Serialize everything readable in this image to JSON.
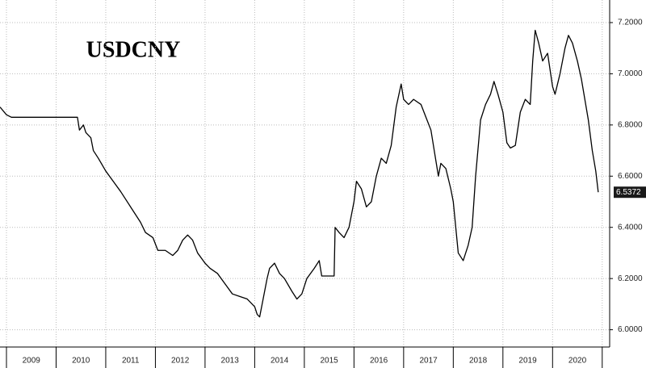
{
  "chart_data": {
    "type": "line",
    "title": "USDCNY",
    "x": [
      2008.87,
      2009.0,
      2009.1,
      2009.5,
      2010.0,
      2010.43,
      2010.47,
      2010.55,
      2010.6,
      2010.7,
      2010.75,
      2010.85,
      2011.0,
      2011.15,
      2011.3,
      2011.5,
      2011.7,
      2011.8,
      2011.95,
      2012.05,
      2012.2,
      2012.35,
      2012.45,
      2012.55,
      2012.65,
      2012.75,
      2012.85,
      2013.0,
      2013.1,
      2013.25,
      2013.4,
      2013.55,
      2013.7,
      2013.85,
      2014.0,
      2014.05,
      2014.1,
      2014.15,
      2014.25,
      2014.3,
      2014.4,
      2014.5,
      2014.6,
      2014.75,
      2014.85,
      2014.95,
      2015.05,
      2015.2,
      2015.3,
      2015.35,
      2015.5,
      2015.6,
      2015.62,
      2015.7,
      2015.8,
      2015.9,
      2016.0,
      2016.05,
      2016.15,
      2016.25,
      2016.35,
      2016.45,
      2016.55,
      2016.65,
      2016.75,
      2016.85,
      2016.95,
      2017.0,
      2017.1,
      2017.2,
      2017.35,
      2017.45,
      2017.55,
      2017.65,
      2017.7,
      2017.75,
      2017.85,
      2017.95,
      2018.0,
      2018.1,
      2018.2,
      2018.3,
      2018.38,
      2018.45,
      2018.55,
      2018.65,
      2018.75,
      2018.82,
      2018.9,
      2019.0,
      2019.08,
      2019.15,
      2019.25,
      2019.35,
      2019.45,
      2019.55,
      2019.6,
      2019.65,
      2019.72,
      2019.8,
      2019.9,
      2020.0,
      2020.05,
      2020.15,
      2020.25,
      2020.32,
      2020.4,
      2020.5,
      2020.58,
      2020.65,
      2020.72,
      2020.8,
      2020.87,
      2020.92
    ],
    "series": [
      {
        "name": "USDCNY",
        "color": "#000000",
        "values": [
          6.87,
          6.84,
          6.83,
          6.83,
          6.83,
          6.83,
          6.78,
          6.8,
          6.77,
          6.75,
          6.7,
          6.67,
          6.62,
          6.58,
          6.54,
          6.48,
          6.42,
          6.38,
          6.36,
          6.31,
          6.31,
          6.29,
          6.31,
          6.35,
          6.37,
          6.35,
          6.3,
          6.26,
          6.24,
          6.22,
          6.18,
          6.14,
          6.13,
          6.12,
          6.09,
          6.06,
          6.05,
          6.1,
          6.2,
          6.24,
          6.26,
          6.22,
          6.2,
          6.15,
          6.12,
          6.14,
          6.2,
          6.24,
          6.27,
          6.21,
          6.21,
          6.21,
          6.4,
          6.38,
          6.36,
          6.4,
          6.5,
          6.58,
          6.55,
          6.48,
          6.5,
          6.6,
          6.67,
          6.65,
          6.72,
          6.87,
          6.96,
          6.9,
          6.88,
          6.9,
          6.88,
          6.83,
          6.78,
          6.66,
          6.6,
          6.65,
          6.63,
          6.55,
          6.5,
          6.3,
          6.27,
          6.33,
          6.4,
          6.6,
          6.82,
          6.88,
          6.92,
          6.97,
          6.92,
          6.85,
          6.73,
          6.71,
          6.72,
          6.85,
          6.9,
          6.88,
          7.05,
          7.17,
          7.12,
          7.05,
          7.08,
          6.95,
          6.92,
          7.0,
          7.1,
          7.15,
          7.12,
          7.05,
          6.98,
          6.9,
          6.82,
          6.7,
          6.62,
          6.5372
        ]
      }
    ],
    "last_value": 6.5372,
    "xlim": [
      2008.87,
      2021.15
    ],
    "xticks": [
      {
        "value": 2009.5,
        "label": "2009"
      },
      {
        "value": 2010.5,
        "label": "2010"
      },
      {
        "value": 2011.5,
        "label": "2011"
      },
      {
        "value": 2012.5,
        "label": "2012"
      },
      {
        "value": 2013.5,
        "label": "2013"
      },
      {
        "value": 2014.5,
        "label": "2014"
      },
      {
        "value": 2015.5,
        "label": "2015"
      },
      {
        "value": 2016.5,
        "label": "2016"
      },
      {
        "value": 2017.5,
        "label": "2017"
      },
      {
        "value": 2018.5,
        "label": "2018"
      },
      {
        "value": 2019.5,
        "label": "2019"
      },
      {
        "value": 2020.5,
        "label": "2020"
      }
    ],
    "ylim": [
      5.9325,
      7.2882
    ],
    "yticks": [
      {
        "value": 6.0,
        "label": "6.0000"
      },
      {
        "value": 6.2,
        "label": "6.2000"
      },
      {
        "value": 6.4,
        "label": "6.4000"
      },
      {
        "value": 6.6,
        "label": "6.6000"
      },
      {
        "value": 6.8,
        "label": "6.8000"
      },
      {
        "value": 7.0,
        "label": "7.0000"
      },
      {
        "value": 7.2,
        "label": "7.2000"
      }
    ],
    "grid": true
  }
}
